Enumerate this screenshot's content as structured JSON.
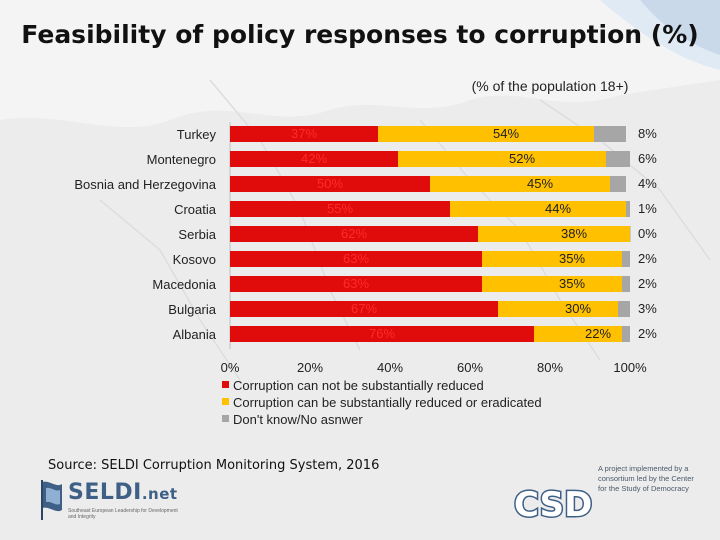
{
  "title": "Feasibility of policy responses to corruption (%)",
  "subtitle": "(% of the population 18+)",
  "source": "Source: SELDI Corruption Monitoring System, 2016",
  "logos": {
    "seldi_name": "SELDI",
    "seldi_suffix": ".net",
    "seldi_tagline": "Southeast European Leadership for Development and Integrity",
    "csd_name": "CSD",
    "csd_text": "A project implemented by a consortium led by the Center for the Study of Democracy"
  },
  "colors": {
    "not_reduced": "#e00b0b",
    "reduced": "#ffc000",
    "dont_know": "#a6a6a6",
    "logo_blue": "#3e5f86"
  },
  "chart_data": {
    "type": "bar",
    "orientation": "horizontal",
    "stacked": true,
    "title": "Feasibility of policy responses to corruption (%)",
    "subtitle": "(% of the population 18+)",
    "categories": [
      "Turkey",
      "Montenegro",
      "Bosnia and Herzegovina",
      "Croatia",
      "Serbia",
      "Kosovo",
      "Macedonia",
      "Bulgaria",
      "Albania"
    ],
    "series": [
      {
        "name": "Corruption can not be substantially reduced",
        "color": "#e00b0b",
        "values": [
          37,
          42,
          50,
          55,
          62,
          63,
          63,
          67,
          76
        ]
      },
      {
        "name": "Corruption can be substantially reduced or eradicated",
        "color": "#ffc000",
        "values": [
          54,
          52,
          45,
          44,
          38,
          35,
          35,
          30,
          22
        ]
      },
      {
        "name": "Don't know/No asnwer",
        "color": "#a6a6a6",
        "values": [
          8,
          6,
          4,
          1,
          0,
          2,
          2,
          3,
          2
        ]
      }
    ],
    "data_labels": [
      [
        "37%",
        "54%",
        "8%"
      ],
      [
        "42%",
        "52%",
        "6%"
      ],
      [
        "50%",
        "45%",
        "4%"
      ],
      [
        "55%",
        "44%",
        "1%"
      ],
      [
        "62%",
        "38%",
        "0%"
      ],
      [
        "63%",
        "35%",
        "2%"
      ],
      [
        "63%",
        "35%",
        "2%"
      ],
      [
        "67%",
        "30%",
        "3%"
      ],
      [
        "76%",
        "22%",
        "2%"
      ]
    ],
    "x_ticks": [
      "0%",
      "20%",
      "40%",
      "60%",
      "80%",
      "100%"
    ],
    "xlim": [
      0,
      100
    ],
    "legend_position": "bottom-left"
  }
}
